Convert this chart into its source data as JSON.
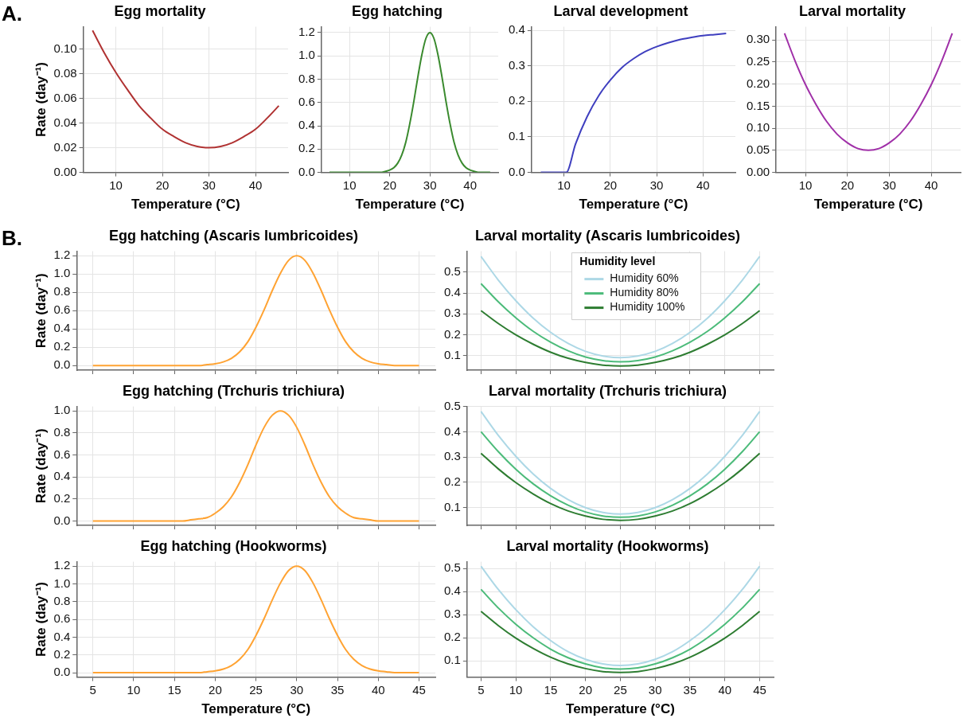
{
  "chart_data": [
    {
      "type": "line",
      "title": "Egg mortality",
      "xlabel": "Temperature (°C)",
      "ylabel": "Rate (day⁻¹)",
      "annotations": [
        "A."
      ],
      "grid": true,
      "xlim": [
        3,
        47
      ],
      "xticks": [
        10,
        20,
        30,
        40
      ],
      "ylim": [
        0,
        0.118
      ],
      "yticks": [
        {
          "value": 0,
          "label": "0.00"
        },
        {
          "value": 0.02,
          "label": "0.02"
        },
        {
          "value": 0.04,
          "label": "0.04"
        },
        {
          "value": 0.06,
          "label": "0.06"
        },
        {
          "value": 0.08,
          "label": "0.08"
        },
        {
          "value": 0.1,
          "label": "0.10"
        }
      ],
      "x": [
        5,
        7.5,
        10,
        12.5,
        15,
        17.5,
        20,
        22.5,
        25,
        27.5,
        30,
        32.5,
        35,
        37.5,
        40,
        42.5,
        45
      ],
      "series": [
        {
          "color": "#b03232",
          "values": [
            0.115,
            0.097,
            0.081,
            0.067,
            0.054,
            0.044,
            0.035,
            0.029,
            0.024,
            0.021,
            0.02,
            0.021,
            0.024,
            0.029,
            0.035,
            0.044,
            0.054
          ]
        }
      ]
    },
    {
      "type": "line",
      "title": "Egg hatching",
      "xlabel": "Temperature (°C)",
      "grid": true,
      "xlim": [
        3,
        47
      ],
      "xticks": [
        10,
        20,
        30,
        40
      ],
      "ylim": [
        0,
        1.25
      ],
      "yticks": [
        {
          "value": 0,
          "label": "0.0"
        },
        {
          "value": 0.2,
          "label": "0.2"
        },
        {
          "value": 0.4,
          "label": "0.4"
        },
        {
          "value": 0.6,
          "label": "0.6"
        },
        {
          "value": 0.8,
          "label": "0.8"
        },
        {
          "value": 1,
          "label": "1.0"
        },
        {
          "value": 1.2,
          "label": "1.2"
        }
      ],
      "x": [
        5,
        6,
        7,
        8,
        9,
        10,
        11,
        12,
        13,
        14,
        15,
        16,
        17,
        18,
        19,
        20,
        21,
        22,
        23,
        24,
        25,
        26,
        27,
        28,
        29,
        30,
        31,
        32,
        33,
        34,
        35,
        36,
        37,
        38,
        39,
        40,
        41,
        42,
        43,
        44,
        45
      ],
      "series": [
        {
          "color": "#3a8a2e",
          "values": [
            0,
            0,
            0,
            0,
            0,
            0,
            0,
            0,
            0,
            0,
            0,
            0,
            0,
            0,
            0.01,
            0.02,
            0.04,
            0.08,
            0.15,
            0.26,
            0.42,
            0.61,
            0.82,
            1.01,
            1.15,
            1.2,
            1.15,
            1.01,
            0.82,
            0.61,
            0.42,
            0.26,
            0.15,
            0.08,
            0.04,
            0.02,
            0.01,
            0,
            0,
            0,
            0
          ]
        }
      ]
    },
    {
      "type": "line",
      "title": "Larval development",
      "xlabel": "Temperature (°C)",
      "grid": true,
      "xlim": [
        3,
        47
      ],
      "xticks": [
        10,
        20,
        30,
        40
      ],
      "ylim": [
        0,
        0.41
      ],
      "yticks": [
        {
          "value": 0,
          "label": "0.0"
        },
        {
          "value": 0.1,
          "label": "0.1"
        },
        {
          "value": 0.2,
          "label": "0.2"
        },
        {
          "value": 0.3,
          "label": "0.3"
        },
        {
          "value": 0.4,
          "label": "0.4"
        }
      ],
      "x": [
        5,
        7.5,
        10,
        10.5,
        12.5,
        15,
        17.5,
        20,
        22.5,
        25,
        27.5,
        30,
        32.5,
        35,
        37.5,
        40,
        42.5,
        45
      ],
      "series": [
        {
          "color": "#3f3fbf",
          "values": [
            0,
            0,
            0,
            0,
            0.08,
            0.157,
            0.216,
            0.26,
            0.295,
            0.32,
            0.34,
            0.354,
            0.365,
            0.374,
            0.38,
            0.385,
            0.388,
            0.391
          ]
        }
      ]
    },
    {
      "type": "line",
      "title": "Larval mortality",
      "xlabel": "Temperature (°C)",
      "grid": true,
      "xlim": [
        3,
        47
      ],
      "xticks": [
        10,
        20,
        30,
        40
      ],
      "ylim": [
        0,
        0.33
      ],
      "yticks": [
        {
          "value": 0,
          "label": "0.00"
        },
        {
          "value": 0.05,
          "label": "0.05"
        },
        {
          "value": 0.1,
          "label": "0.10"
        },
        {
          "value": 0.15,
          "label": "0.15"
        },
        {
          "value": 0.2,
          "label": "0.20"
        },
        {
          "value": 0.25,
          "label": "0.25"
        },
        {
          "value": 0.3,
          "label": "0.30"
        }
      ],
      "x": [
        5,
        7.5,
        10,
        12.5,
        15,
        17.5,
        20,
        22.5,
        25,
        27.5,
        30,
        32.5,
        35,
        37.5,
        40,
        42.5,
        45
      ],
      "series": [
        {
          "color": "#a030a8",
          "values": [
            0.315,
            0.253,
            0.199,
            0.154,
            0.116,
            0.087,
            0.067,
            0.054,
            0.05,
            0.054,
            0.067,
            0.087,
            0.116,
            0.154,
            0.199,
            0.253,
            0.315
          ]
        }
      ]
    },
    {
      "type": "line",
      "title": "Egg hatching (Ascaris lumbricoides)",
      "ylabel": "Rate (day⁻¹)",
      "annotations": [
        "B."
      ],
      "grid": true,
      "tick_labels": "y",
      "xlim": [
        3,
        47
      ],
      "xticks": [
        5,
        10,
        15,
        20,
        25,
        30,
        35,
        40,
        45
      ],
      "ylim": [
        -0.05,
        1.25
      ],
      "yticks": [
        {
          "value": 0,
          "label": "0.0"
        },
        {
          "value": 0.2,
          "label": "0.2"
        },
        {
          "value": 0.4,
          "label": "0.4"
        },
        {
          "value": 0.6,
          "label": "0.6"
        },
        {
          "value": 0.8,
          "label": "0.8"
        },
        {
          "value": 1,
          "label": "1.0"
        },
        {
          "value": 1.2,
          "label": "1.2"
        }
      ],
      "x": [
        5,
        6,
        7,
        8,
        9,
        10,
        11,
        12,
        13,
        14,
        15,
        16,
        17,
        18,
        19,
        20,
        21,
        22,
        23,
        24,
        25,
        26,
        27,
        28,
        29,
        30,
        31,
        32,
        33,
        34,
        35,
        36,
        37,
        38,
        39,
        40,
        41,
        42,
        43,
        44,
        45
      ],
      "series": [
        {
          "color": "#ffa333",
          "values": [
            0,
            0,
            0,
            0,
            0,
            0,
            0,
            0,
            0,
            0,
            0,
            0,
            0,
            0,
            0.01,
            0.02,
            0.04,
            0.08,
            0.15,
            0.26,
            0.42,
            0.61,
            0.82,
            1.01,
            1.15,
            1.2,
            1.15,
            1.01,
            0.82,
            0.61,
            0.42,
            0.26,
            0.15,
            0.08,
            0.04,
            0.02,
            0.01,
            0,
            0,
            0,
            0
          ]
        }
      ]
    },
    {
      "type": "line",
      "title": "Larval mortality (Ascaris lumbricoides)",
      "legend": "top",
      "legend_title": "Humidity level",
      "grid": true,
      "tick_labels": "y",
      "xlim": [
        3,
        47
      ],
      "xticks": [
        5,
        10,
        15,
        20,
        25,
        30,
        35,
        40,
        45
      ],
      "ylim": [
        0.03,
        0.6
      ],
      "yticks": [
        {
          "value": 0.1,
          "label": "0.1"
        },
        {
          "value": 0.2,
          "label": "0.2"
        },
        {
          "value": 0.3,
          "label": "0.3"
        },
        {
          "value": 0.4,
          "label": "0.4"
        },
        {
          "value": 0.5,
          "label": "0.5"
        }
      ],
      "x": [
        5,
        7.5,
        10,
        12.5,
        15,
        17.5,
        20,
        22.5,
        25,
        27.5,
        30,
        32.5,
        35,
        37.5,
        40,
        42.5,
        45
      ],
      "series": [
        {
          "name": "Humidity 60%",
          "color": "#add8e6",
          "values": [
            0.575,
            0.461,
            0.363,
            0.279,
            0.211,
            0.158,
            0.12,
            0.098,
            0.09,
            0.098,
            0.12,
            0.158,
            0.211,
            0.279,
            0.363,
            0.461,
            0.575
          ]
        },
        {
          "name": "Humidity 80%",
          "color": "#4cbb7a",
          "values": [
            0.445,
            0.357,
            0.281,
            0.216,
            0.164,
            0.123,
            0.093,
            0.076,
            0.07,
            0.076,
            0.093,
            0.123,
            0.164,
            0.216,
            0.281,
            0.357,
            0.445
          ]
        },
        {
          "name": "Humidity 100%",
          "color": "#2e7d32",
          "values": [
            0.315,
            0.253,
            0.199,
            0.154,
            0.116,
            0.087,
            0.067,
            0.054,
            0.05,
            0.054,
            0.067,
            0.087,
            0.116,
            0.154,
            0.199,
            0.253,
            0.315
          ]
        }
      ]
    },
    {
      "type": "line",
      "title": "Egg hatching (Trchuris trichiura)",
      "ylabel": "Rate (day⁻¹)",
      "grid": true,
      "tick_labels": "y",
      "xlim": [
        3,
        47
      ],
      "xticks": [
        5,
        10,
        15,
        20,
        25,
        30,
        35,
        40,
        45
      ],
      "ylim": [
        -0.04,
        1.04
      ],
      "yticks": [
        {
          "value": 0,
          "label": "0.0"
        },
        {
          "value": 0.2,
          "label": "0.2"
        },
        {
          "value": 0.4,
          "label": "0.4"
        },
        {
          "value": 0.6,
          "label": "0.6"
        },
        {
          "value": 0.8,
          "label": "0.8"
        },
        {
          "value": 1,
          "label": "1.0"
        }
      ],
      "x": [
        5,
        6,
        7,
        8,
        9,
        10,
        11,
        12,
        13,
        14,
        15,
        16,
        17,
        18,
        19,
        20,
        21,
        22,
        23,
        24,
        25,
        26,
        27,
        28,
        29,
        30,
        31,
        32,
        33,
        34,
        35,
        36,
        37,
        38,
        39,
        40,
        41,
        42,
        43,
        44,
        45
      ],
      "series": [
        {
          "color": "#ffa333",
          "values": [
            0,
            0,
            0,
            0,
            0,
            0,
            0,
            0,
            0,
            0,
            0,
            0,
            0.01,
            0.02,
            0.03,
            0.07,
            0.13,
            0.22,
            0.35,
            0.51,
            0.69,
            0.85,
            0.96,
            1,
            0.96,
            0.85,
            0.69,
            0.51,
            0.35,
            0.22,
            0.13,
            0.07,
            0.03,
            0.02,
            0.01,
            0,
            0,
            0,
            0,
            0,
            0
          ]
        }
      ]
    },
    {
      "type": "line",
      "title": "Larval mortality (Trchuris trichiura)",
      "grid": true,
      "tick_labels": "y",
      "xlim": [
        3,
        47
      ],
      "xticks": [
        5,
        10,
        15,
        20,
        25,
        30,
        35,
        40,
        45
      ],
      "ylim": [
        0.03,
        0.5
      ],
      "yticks": [
        {
          "value": 0.1,
          "label": "0.1"
        },
        {
          "value": 0.2,
          "label": "0.2"
        },
        {
          "value": 0.3,
          "label": "0.3"
        },
        {
          "value": 0.4,
          "label": "0.4"
        },
        {
          "value": 0.5,
          "label": "0.5"
        }
      ],
      "x": [
        5,
        7.5,
        10,
        12.5,
        15,
        17.5,
        20,
        22.5,
        25,
        27.5,
        30,
        32.5,
        35,
        37.5,
        40,
        42.5,
        45
      ],
      "series": [
        {
          "color": "#add8e6",
          "values": [
            0.48,
            0.385,
            0.303,
            0.233,
            0.176,
            0.132,
            0.1,
            0.081,
            0.075,
            0.081,
            0.1,
            0.132,
            0.176,
            0.233,
            0.303,
            0.385,
            0.48
          ]
        },
        {
          "color": "#4cbb7a",
          "values": [
            0.4,
            0.321,
            0.252,
            0.194,
            0.147,
            0.11,
            0.083,
            0.067,
            0.062,
            0.067,
            0.083,
            0.11,
            0.147,
            0.194,
            0.252,
            0.321,
            0.4
          ]
        },
        {
          "color": "#2e7d32",
          "values": [
            0.315,
            0.253,
            0.199,
            0.154,
            0.116,
            0.087,
            0.067,
            0.054,
            0.05,
            0.054,
            0.067,
            0.087,
            0.116,
            0.154,
            0.199,
            0.253,
            0.315
          ]
        }
      ]
    },
    {
      "type": "line",
      "title": "Egg hatching (Hookworms)",
      "xlabel": "Temperature (°C)",
      "ylabel": "Rate (day⁻¹)",
      "grid": true,
      "xlim": [
        3,
        47
      ],
      "xticks": [
        5,
        10,
        15,
        20,
        25,
        30,
        35,
        40,
        45
      ],
      "ylim": [
        -0.05,
        1.25
      ],
      "yticks": [
        {
          "value": 0,
          "label": "0.0"
        },
        {
          "value": 0.2,
          "label": "0.2"
        },
        {
          "value": 0.4,
          "label": "0.4"
        },
        {
          "value": 0.6,
          "label": "0.6"
        },
        {
          "value": 0.8,
          "label": "0.8"
        },
        {
          "value": 1,
          "label": "1.0"
        },
        {
          "value": 1.2,
          "label": "1.2"
        }
      ],
      "x": [
        5,
        6,
        7,
        8,
        9,
        10,
        11,
        12,
        13,
        14,
        15,
        16,
        17,
        18,
        19,
        20,
        21,
        22,
        23,
        24,
        25,
        26,
        27,
        28,
        29,
        30,
        31,
        32,
        33,
        34,
        35,
        36,
        37,
        38,
        39,
        40,
        41,
        42,
        43,
        44,
        45
      ],
      "series": [
        {
          "color": "#ffa333",
          "values": [
            0,
            0,
            0,
            0,
            0,
            0,
            0,
            0,
            0,
            0,
            0,
            0,
            0,
            0,
            0.01,
            0.02,
            0.04,
            0.08,
            0.15,
            0.26,
            0.42,
            0.61,
            0.82,
            1.01,
            1.15,
            1.2,
            1.15,
            1.01,
            0.82,
            0.61,
            0.42,
            0.26,
            0.15,
            0.08,
            0.04,
            0.02,
            0.01,
            0,
            0,
            0,
            0
          ]
        }
      ]
    },
    {
      "type": "line",
      "title": "Larval mortality (Hookworms)",
      "xlabel": "Temperature (°C)",
      "grid": true,
      "xlim": [
        3,
        47
      ],
      "xticks": [
        5,
        10,
        15,
        20,
        25,
        30,
        35,
        40,
        45
      ],
      "ylim": [
        0.03,
        0.53
      ],
      "yticks": [
        {
          "value": 0.1,
          "label": "0.1"
        },
        {
          "value": 0.2,
          "label": "0.2"
        },
        {
          "value": 0.3,
          "label": "0.3"
        },
        {
          "value": 0.4,
          "label": "0.4"
        },
        {
          "value": 0.5,
          "label": "0.5"
        }
      ],
      "x": [
        5,
        7.5,
        10,
        12.5,
        15,
        17.5,
        20,
        22.5,
        25,
        27.5,
        30,
        32.5,
        35,
        37.5,
        40,
        42.5,
        45
      ],
      "series": [
        {
          "color": "#add8e6",
          "values": [
            0.51,
            0.409,
            0.322,
            0.248,
            0.188,
            0.14,
            0.107,
            0.087,
            0.08,
            0.087,
            0.107,
            0.14,
            0.188,
            0.248,
            0.322,
            0.409,
            0.51
          ]
        },
        {
          "color": "#4cbb7a",
          "values": [
            0.41,
            0.329,
            0.259,
            0.2,
            0.151,
            0.114,
            0.087,
            0.07,
            0.065,
            0.07,
            0.087,
            0.114,
            0.151,
            0.2,
            0.259,
            0.329,
            0.41
          ]
        },
        {
          "color": "#2e7d32",
          "values": [
            0.315,
            0.253,
            0.199,
            0.154,
            0.116,
            0.087,
            0.067,
            0.054,
            0.05,
            0.054,
            0.067,
            0.087,
            0.116,
            0.154,
            0.199,
            0.253,
            0.315
          ]
        }
      ]
    }
  ]
}
